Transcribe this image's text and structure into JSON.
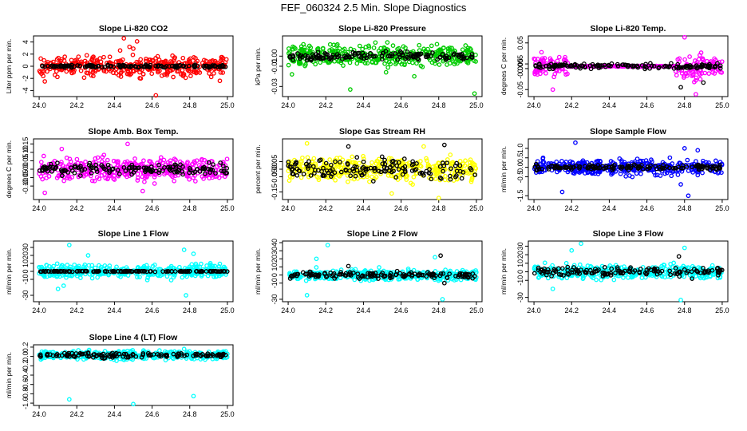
{
  "page": {
    "title": "FEF_060324  2.5 Min. Slope Diagnostics"
  },
  "chart_data": [
    {
      "type": "scatter",
      "title": "Slope Li-820 CO2",
      "ylabel": "Liter ppm per min.",
      "xlim": [
        23.97,
        25.03
      ],
      "ylim": [
        -5.0,
        5.0
      ],
      "xticks": [
        "24.0",
        "24.2",
        "24.4",
        "24.6",
        "24.8",
        "25.0"
      ],
      "yticks": [
        "-4",
        "-2",
        "0",
        "2",
        "4"
      ],
      "series": [
        {
          "color": "#ff0000",
          "spread": 1.2,
          "outliers": [
            [
              24.45,
              4.6
            ],
            [
              24.52,
              4.1
            ],
            [
              24.48,
              3.2
            ],
            [
              24.62,
              -4.8
            ],
            [
              24.03,
              -2.5
            ],
            [
              24.96,
              -2.4
            ],
            [
              24.43,
              2.6
            ],
            [
              24.5,
              2.9
            ]
          ]
        },
        {
          "color": "#000000",
          "spread": 0.15,
          "outliers": []
        }
      ]
    },
    {
      "type": "scatter",
      "title": "Slope Li-820 Pressure",
      "ylabel": "kPa per min.",
      "xlim": [
        23.97,
        25.03
      ],
      "ylim": [
        -0.04,
        0.02
      ],
      "xticks": [
        "24.0",
        "24.2",
        "24.4",
        "24.6",
        "24.8",
        "25.0"
      ],
      "yticks": [
        "-0.03",
        "-0.01",
        "0.00"
      ],
      "series": [
        {
          "color": "#00cc00",
          "spread": 0.008,
          "outliers": [
            [
              24.33,
              -0.033
            ],
            [
              24.99,
              -0.037
            ],
            [
              24.67,
              -0.02
            ],
            [
              24.02,
              -0.018
            ],
            [
              24.52,
              -0.016
            ]
          ]
        },
        {
          "color": "#000000",
          "spread": 0.003,
          "outliers": []
        }
      ]
    },
    {
      "type": "scatter",
      "title": "Slope Li-820 Temp.",
      "ylabel": "degrees C per min.",
      "xlim": [
        23.97,
        25.03
      ],
      "ylim": [
        -0.065,
        0.065
      ],
      "xticks": [
        "24.0",
        "24.2",
        "24.4",
        "24.6",
        "24.8",
        "25.0"
      ],
      "yticks": [
        "-0.05",
        "-0.005",
        "0.005",
        "0.05"
      ],
      "series": [
        {
          "color": "#ff00ff",
          "spread": 0.02,
          "outliers": [
            [
              24.1,
              -0.05
            ],
            [
              24.8,
              0.062
            ],
            [
              24.86,
              -0.06
            ],
            [
              24.04,
              0.03
            ]
          ]
        },
        {
          "color": "#000000",
          "spread": 0.004,
          "outliers": [
            [
              24.78,
              -0.045
            ],
            [
              24.9,
              -0.035
            ]
          ]
        }
      ]
    },
    {
      "type": "scatter",
      "title": "Slope Amb. Box Temp.",
      "ylabel": "degrees C per min.",
      "xlim": [
        23.97,
        25.03
      ],
      "ylim": [
        -0.18,
        0.18
      ],
      "xticks": [
        "24.0",
        "24.2",
        "24.4",
        "24.6",
        "24.8",
        "25.0"
      ],
      "yticks": [
        "-0.10",
        "-0.05",
        "0.00",
        "0.05",
        "0.10",
        "0.15"
      ],
      "series": [
        {
          "color": "#ff00ff",
          "spread": 0.05,
          "outliers": [
            [
              24.47,
              0.15
            ],
            [
              24.55,
              -0.13
            ],
            [
              24.12,
              0.12
            ],
            [
              24.03,
              -0.14
            ]
          ]
        },
        {
          "color": "#000000",
          "spread": 0.025,
          "outliers": []
        }
      ]
    },
    {
      "type": "scatter",
      "title": "Slope Gas Stream RH",
      "ylabel": "percent per min.",
      "xlim": [
        23.97,
        25.03
      ],
      "ylim": [
        -0.2,
        0.2
      ],
      "xticks": [
        "24.0",
        "24.2",
        "24.4",
        "24.6",
        "24.8",
        "25.0"
      ],
      "yticks": [
        "-0.15",
        "-0.05",
        "0.00",
        "0.05"
      ],
      "series": [
        {
          "color": "#ffff00",
          "spread": 0.06,
          "outliers": [
            [
              24.8,
              -0.19
            ],
            [
              24.55,
              -0.16
            ],
            [
              24.1,
              0.17
            ],
            [
              24.72,
              0.15
            ]
          ]
        },
        {
          "color": "#000000",
          "spread": 0.05,
          "outliers": [
            [
              24.32,
              0.15
            ],
            [
              24.83,
              0.16
            ]
          ]
        }
      ]
    },
    {
      "type": "scatter",
      "title": "Slope Sample Flow",
      "ylabel": "ml/min per min.",
      "xlim": [
        23.97,
        25.03
      ],
      "ylim": [
        -1.7,
        1.5
      ],
      "xticks": [
        "24.0",
        "24.2",
        "24.4",
        "24.6",
        "24.8",
        "25.0"
      ],
      "yticks": [
        "-1.5",
        "-0.5",
        "0.0",
        "0.5",
        "1.0"
      ],
      "series": [
        {
          "color": "#0000ff",
          "spread": 0.3,
          "outliers": [
            [
              24.22,
              1.3
            ],
            [
              24.15,
              -1.3
            ],
            [
              24.82,
              -1.5
            ],
            [
              24.8,
              1.0
            ],
            [
              24.78,
              -0.9
            ],
            [
              24.87,
              0.9
            ]
          ]
        },
        {
          "color": "#000000",
          "spread": 0.1,
          "outliers": []
        }
      ]
    },
    {
      "type": "scatter",
      "title": "Slope Line 1 Flow",
      "ylabel": "ml/min per min.",
      "xlim": [
        23.97,
        25.03
      ],
      "ylim": [
        -38.0,
        38.0
      ],
      "xticks": [
        "24.0",
        "24.2",
        "24.4",
        "24.6",
        "24.8",
        "25.0"
      ],
      "yticks": [
        "-30",
        "-10",
        "0",
        "10",
        "20",
        "30"
      ],
      "series": [
        {
          "color": "#00ffff",
          "spread": 6.0,
          "outliers": [
            [
              24.16,
              33
            ],
            [
              24.1,
              -22
            ],
            [
              24.77,
              27
            ],
            [
              24.78,
              -30
            ],
            [
              24.26,
              20
            ],
            [
              24.82,
              22
            ],
            [
              24.13,
              -18
            ]
          ]
        },
        {
          "color": "#000000",
          "spread": 0.3,
          "outliers": []
        }
      ]
    },
    {
      "type": "scatter",
      "title": "Slope Line 2 Flow",
      "ylabel": "ml/min per min.",
      "xlim": [
        23.97,
        25.03
      ],
      "ylim": [
        -33.0,
        42.0
      ],
      "xticks": [
        "24.0",
        "24.2",
        "24.4",
        "24.6",
        "24.8",
        "25.0"
      ],
      "yticks": [
        "-30",
        "-10",
        "0",
        "10",
        "20",
        "30",
        "40"
      ],
      "series": [
        {
          "color": "#00ffff",
          "spread": 5.0,
          "outliers": [
            [
              24.21,
              37
            ],
            [
              24.1,
              -25
            ],
            [
              24.82,
              -30
            ],
            [
              24.78,
              22
            ],
            [
              24.15,
              20
            ]
          ]
        },
        {
          "color": "#000000",
          "spread": 3.0,
          "outliers": [
            [
              24.81,
              24
            ],
            [
              24.83,
              -10
            ],
            [
              24.32,
              11
            ]
          ]
        }
      ]
    },
    {
      "type": "scatter",
      "title": "Slope Line 3 Flow",
      "ylabel": "ml/min per min.",
      "xlim": [
        23.97,
        25.03
      ],
      "ylim": [
        -35.0,
        36.0
      ],
      "xticks": [
        "24.0",
        "24.2",
        "24.4",
        "24.6",
        "24.8",
        "25.0"
      ],
      "yticks": [
        "-30",
        "-10",
        "0",
        "10",
        "20",
        "30"
      ],
      "series": [
        {
          "color": "#00ffff",
          "spread": 6.0,
          "outliers": [
            [
              24.25,
              33
            ],
            [
              24.78,
              -33
            ],
            [
              24.2,
              25
            ],
            [
              24.8,
              28
            ],
            [
              24.1,
              -20
            ]
          ]
        },
        {
          "color": "#000000",
          "spread": 3.5,
          "outliers": [
            [
              24.77,
              18
            ],
            [
              24.84,
              -8
            ]
          ]
        }
      ]
    },
    {
      "type": "scatter",
      "title": "Slope Line 4 (LT) Flow",
      "ylabel": "ml/min per min.",
      "xlim": [
        23.97,
        25.03
      ],
      "ylim": [
        -1.05,
        0.25
      ],
      "xticks": [
        "24.0",
        "24.2",
        "24.4",
        "24.6",
        "24.8",
        "25.0"
      ],
      "yticks": [
        "-1.0",
        "-0.8",
        "-0.6",
        "-0.4",
        "-0.2",
        "0.0",
        "0.2"
      ],
      "series": [
        {
          "color": "#00ffff",
          "spread": 0.07,
          "outliers": [
            [
              24.16,
              -0.92
            ],
            [
              24.5,
              -1.02
            ],
            [
              24.82,
              -0.85
            ],
            [
              24.77,
              0.16
            ]
          ]
        },
        {
          "color": "#000000",
          "spread": 0.04,
          "outliers": []
        }
      ]
    }
  ]
}
